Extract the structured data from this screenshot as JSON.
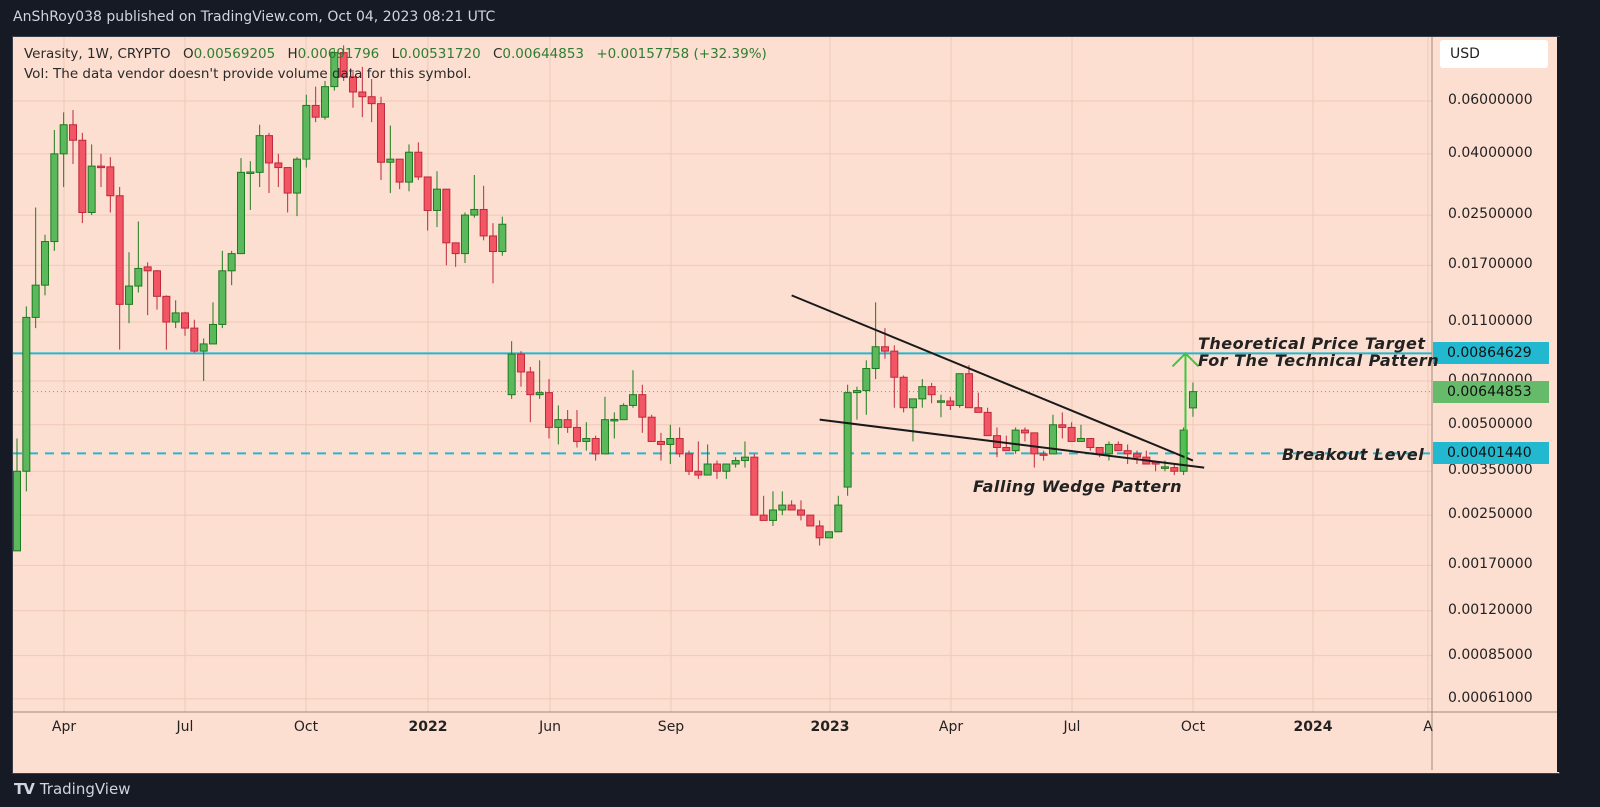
{
  "header": {
    "published": "AnShRoy038 published on TradingView.com, Oct 04, 2023 08:21 UTC"
  },
  "legend": {
    "symbol": "Verasity, 1W, CRYPTO",
    "o_label": "O",
    "o_value": "0.00569205",
    "h_label": "H",
    "h_value": "0.00691796",
    "l_label": "L",
    "l_value": "0.00531720",
    "c_label": "C",
    "c_value": "0.00644853",
    "change": "+0.00157758 (+32.39%)",
    "vol_note": "Vol: The data vendor doesn't provide volume data for this symbol."
  },
  "currency_button": "USD",
  "footer": {
    "brand": "TradingView",
    "logo_icon": "tradingview-logo-icon"
  },
  "colors": {
    "up": "#5cb85c",
    "up_border": "#1e7a1e",
    "down": "#f25563",
    "down_border": "#c0283a",
    "background": "#fddfd1",
    "level_line": "#22b8cf",
    "current_price": "#66bb6a",
    "arrow": "#3cc83c"
  },
  "chart_data": {
    "type": "candlestick",
    "scale": "log",
    "timeframe": "1W",
    "grid": true,
    "ylim": [
      0.00055,
      0.1
    ],
    "y_ticks": [
      "0.06000000",
      "0.04000000",
      "0.02500000",
      "0.01700000",
      "0.01100000",
      "0.00700000",
      "0.00500000",
      "0.00350000",
      "0.00250000",
      "0.00170000",
      "0.00120000",
      "0.00085000",
      "0.00061000"
    ],
    "x_ticks": [
      {
        "label": "Apr",
        "bold": false
      },
      {
        "label": "Jul",
        "bold": false
      },
      {
        "label": "Oct",
        "bold": false
      },
      {
        "label": "2022",
        "bold": true
      },
      {
        "label": "Jun",
        "bold": false
      },
      {
        "label": "Sep",
        "bold": false
      },
      {
        "label": "2023",
        "bold": true
      },
      {
        "label": "Apr",
        "bold": false
      },
      {
        "label": "Jul",
        "bold": false
      },
      {
        "label": "Oct",
        "bold": false
      },
      {
        "label": "2024",
        "bold": true
      },
      {
        "label": "A",
        "bold": false
      }
    ],
    "candles_ohlc": [
      [
        0.0019,
        0.0045,
        0.0019,
        0.0035
      ],
      [
        0.0035,
        0.0124,
        0.003,
        0.0114
      ],
      [
        0.0114,
        0.0265,
        0.0105,
        0.0146
      ],
      [
        0.0146,
        0.0215,
        0.0135,
        0.0204
      ],
      [
        0.0204,
        0.048,
        0.019,
        0.04
      ],
      [
        0.04,
        0.055,
        0.031,
        0.05
      ],
      [
        0.05,
        0.056,
        0.037,
        0.0444
      ],
      [
        0.0444,
        0.047,
        0.0235,
        0.0255
      ],
      [
        0.0255,
        0.043,
        0.025,
        0.0364
      ],
      [
        0.0364,
        0.04,
        0.031,
        0.0362
      ],
      [
        0.0362,
        0.039,
        0.0255,
        0.029
      ],
      [
        0.029,
        0.031,
        0.0089,
        0.0126
      ],
      [
        0.0126,
        0.0188,
        0.0109,
        0.0145
      ],
      [
        0.0145,
        0.0238,
        0.0138,
        0.0166
      ],
      [
        0.0168,
        0.0174,
        0.0116,
        0.0163
      ],
      [
        0.0163,
        0.0164,
        0.0121,
        0.0134
      ],
      [
        0.0134,
        0.0135,
        0.0089,
        0.011
      ],
      [
        0.011,
        0.013,
        0.0105,
        0.0118
      ],
      [
        0.0118,
        0.0119,
        0.0099,
        0.0105
      ],
      [
        0.0105,
        0.0112,
        0.0087,
        0.0088
      ],
      [
        0.0088,
        0.0097,
        0.007,
        0.0093
      ],
      [
        0.0093,
        0.0128,
        0.0093,
        0.0108
      ],
      [
        0.0108,
        0.019,
        0.0105,
        0.0163
      ],
      [
        0.0163,
        0.019,
        0.0146,
        0.0186
      ],
      [
        0.0186,
        0.0387,
        0.0186,
        0.0347
      ],
      [
        0.0347,
        0.0378,
        0.026,
        0.0348
      ],
      [
        0.0347,
        0.05,
        0.031,
        0.046
      ],
      [
        0.046,
        0.047,
        0.0296,
        0.0373
      ],
      [
        0.0373,
        0.04,
        0.031,
        0.036
      ],
      [
        0.036,
        0.036,
        0.0255,
        0.0296
      ],
      [
        0.0296,
        0.039,
        0.0248,
        0.0384
      ],
      [
        0.0384,
        0.063,
        0.036,
        0.058
      ],
      [
        0.058,
        0.067,
        0.051,
        0.053
      ],
      [
        0.053,
        0.07,
        0.052,
        0.067
      ],
      [
        0.067,
        0.089,
        0.065,
        0.087
      ],
      [
        0.087,
        0.092,
        0.07,
        0.0722
      ],
      [
        0.0722,
        0.075,
        0.057,
        0.0643
      ],
      [
        0.0643,
        0.078,
        0.053,
        0.062
      ],
      [
        0.062,
        0.071,
        0.051,
        0.0588
      ],
      [
        0.0588,
        0.062,
        0.0327,
        0.0375
      ],
      [
        0.0375,
        0.0497,
        0.0296,
        0.0384
      ],
      [
        0.0384,
        0.0384,
        0.0305,
        0.0322
      ],
      [
        0.0322,
        0.043,
        0.03,
        0.0405
      ],
      [
        0.0405,
        0.0437,
        0.0327,
        0.0335
      ],
      [
        0.0335,
        0.0335,
        0.0222,
        0.0259
      ],
      [
        0.0259,
        0.035,
        0.0228,
        0.0305
      ],
      [
        0.0305,
        0.0305,
        0.017,
        0.0202
      ],
      [
        0.0202,
        0.0202,
        0.0168,
        0.0186
      ],
      [
        0.0186,
        0.0255,
        0.0173,
        0.025
      ],
      [
        0.025,
        0.034,
        0.0245,
        0.0261
      ],
      [
        0.0261,
        0.0313,
        0.0206,
        0.0213
      ],
      [
        0.0213,
        0.0235,
        0.0148,
        0.0189
      ],
      [
        0.0189,
        0.0247,
        0.0183,
        0.0233
      ],
      [
        0.0063,
        0.0095,
        0.0061,
        0.0086
      ],
      [
        0.0086,
        0.0088,
        0.0067,
        0.0075
      ],
      [
        0.0075,
        0.0078,
        0.0051,
        0.0063
      ],
      [
        0.0063,
        0.0082,
        0.0061,
        0.0064
      ],
      [
        0.0064,
        0.0071,
        0.0045,
        0.0049
      ],
      [
        0.0049,
        0.0058,
        0.0043,
        0.0052
      ],
      [
        0.0052,
        0.0056,
        0.0047,
        0.0049
      ],
      [
        0.0049,
        0.0056,
        0.0042,
        0.0044
      ],
      [
        0.0044,
        0.0051,
        0.0041,
        0.0045
      ],
      [
        0.0045,
        0.0046,
        0.0038,
        0.004
      ],
      [
        0.004,
        0.0062,
        0.004,
        0.0052
      ],
      [
        0.0052,
        0.0055,
        0.0045,
        0.00521
      ],
      [
        0.0052,
        0.0059,
        0.0052,
        0.0058
      ],
      [
        0.0058,
        0.0076,
        0.0057,
        0.0063
      ],
      [
        0.0063,
        0.0068,
        0.0047,
        0.0053
      ],
      [
        0.0053,
        0.0054,
        0.0044,
        0.0044
      ],
      [
        0.0044,
        0.0047,
        0.0038,
        0.0043
      ],
      [
        0.0043,
        0.005,
        0.0037,
        0.0045
      ],
      [
        0.0045,
        0.0049,
        0.0039,
        0.004
      ],
      [
        0.004,
        0.0041,
        0.0034,
        0.0035
      ],
      [
        0.0035,
        0.0044,
        0.0033,
        0.0034
      ],
      [
        0.0034,
        0.0043,
        0.0034,
        0.0037
      ],
      [
        0.0037,
        0.0038,
        0.0033,
        0.0035
      ],
      [
        0.0035,
        0.0037,
        0.0033,
        0.0037
      ],
      [
        0.0037,
        0.0039,
        0.0036,
        0.0038
      ],
      [
        0.0038,
        0.0044,
        0.0036,
        0.0039
      ],
      [
        0.0039,
        0.004,
        0.0025,
        0.0025
      ],
      [
        0.0025,
        0.0029,
        0.0024,
        0.0024
      ],
      [
        0.0024,
        0.003,
        0.0023,
        0.0026
      ],
      [
        0.0026,
        0.003,
        0.0025,
        0.0027
      ],
      [
        0.0027,
        0.0028,
        0.0026,
        0.0026
      ],
      [
        0.0026,
        0.0028,
        0.0024,
        0.0025
      ],
      [
        0.0025,
        0.0025,
        0.0023,
        0.0023
      ],
      [
        0.0023,
        0.0024,
        0.00198,
        0.0021
      ],
      [
        0.0021,
        0.0022,
        0.0021,
        0.0022
      ],
      [
        0.0022,
        0.0029,
        0.0022,
        0.0027
      ],
      [
        0.0031,
        0.0068,
        0.0029,
        0.0064
      ],
      [
        0.0064,
        0.0067,
        0.0052,
        0.0065
      ],
      [
        0.0065,
        0.0082,
        0.0054,
        0.0077
      ],
      [
        0.0077,
        0.0128,
        0.0071,
        0.0091
      ],
      [
        0.0091,
        0.0105,
        0.0083,
        0.0088
      ],
      [
        0.0088,
        0.0092,
        0.0057,
        0.0072
      ],
      [
        0.0072,
        0.0073,
        0.0055,
        0.0057
      ],
      [
        0.0057,
        0.0061,
        0.0044,
        0.0061
      ],
      [
        0.0061,
        0.0071,
        0.0057,
        0.0067
      ],
      [
        0.0067,
        0.0069,
        0.0059,
        0.0063
      ],
      [
        0.006,
        0.0063,
        0.0053,
        0.00601
      ],
      [
        0.006,
        0.0062,
        0.0056,
        0.0058
      ],
      [
        0.0058,
        0.0074,
        0.0057,
        0.0074
      ],
      [
        0.0074,
        0.0079,
        0.0057,
        0.0057
      ],
      [
        0.0057,
        0.0064,
        0.0055,
        0.0055
      ],
      [
        0.0055,
        0.0057,
        0.0046,
        0.0046
      ],
      [
        0.0046,
        0.0049,
        0.0039,
        0.0042
      ],
      [
        0.0042,
        0.0046,
        0.0041,
        0.0041
      ],
      [
        0.0041,
        0.0049,
        0.004,
        0.0048
      ],
      [
        0.0048,
        0.0049,
        0.0044,
        0.0047
      ],
      [
        0.0047,
        0.0047,
        0.0036,
        0.004
      ],
      [
        0.004,
        0.0041,
        0.0038,
        0.00398
      ],
      [
        0.004,
        0.0054,
        0.004,
        0.005
      ],
      [
        0.005,
        0.0055,
        0.0045,
        0.0049
      ],
      [
        0.0049,
        0.0051,
        0.0044,
        0.0044
      ],
      [
        0.0044,
        0.005,
        0.0044,
        0.0045
      ],
      [
        0.0045,
        0.0045,
        0.0041,
        0.0042
      ],
      [
        0.0042,
        0.0042,
        0.0039,
        0.004
      ],
      [
        0.004,
        0.0044,
        0.0038,
        0.0043
      ],
      [
        0.0043,
        0.0044,
        0.0041,
        0.0041
      ],
      [
        0.0041,
        0.0043,
        0.0037,
        0.004
      ],
      [
        0.004,
        0.0041,
        0.0037,
        0.0039
      ],
      [
        0.0039,
        0.0041,
        0.0037,
        0.0037
      ],
      [
        0.00375,
        0.0038,
        0.0035,
        0.0037
      ],
      [
        0.0036,
        0.0038,
        0.0035,
        0.00362
      ],
      [
        0.0036,
        0.0037,
        0.0034,
        0.0035
      ],
      [
        0.0035,
        0.0049,
        0.0034,
        0.0048
      ],
      [
        0.00569205,
        0.00691796,
        0.0053172,
        0.00644853
      ]
    ],
    "levels": [
      {
        "price": 0.00864629,
        "label": "0.00864629",
        "style": "solid"
      },
      {
        "price": 0.0040144,
        "label": "0.00401440",
        "style": "dashed"
      }
    ],
    "current_price": {
      "price": 0.00644853,
      "label": "0.00644853"
    },
    "trendlines": [
      {
        "from": [
          83,
          0.0135
        ],
        "to": [
          126,
          0.0038
        ]
      },
      {
        "from": [
          86,
          0.0052
        ],
        "to": [
          127.2,
          0.0036
        ]
      }
    ],
    "target_arrow": {
      "bar": 125.2,
      "from": 0.0038,
      "to": 0.00864629
    },
    "annotations": {
      "target_line1": "Theoretical Price Target",
      "target_line2": "For The Technical Pattern",
      "breakout": "Breakout Level",
      "pattern": "Falling Wedge Pattern"
    }
  }
}
